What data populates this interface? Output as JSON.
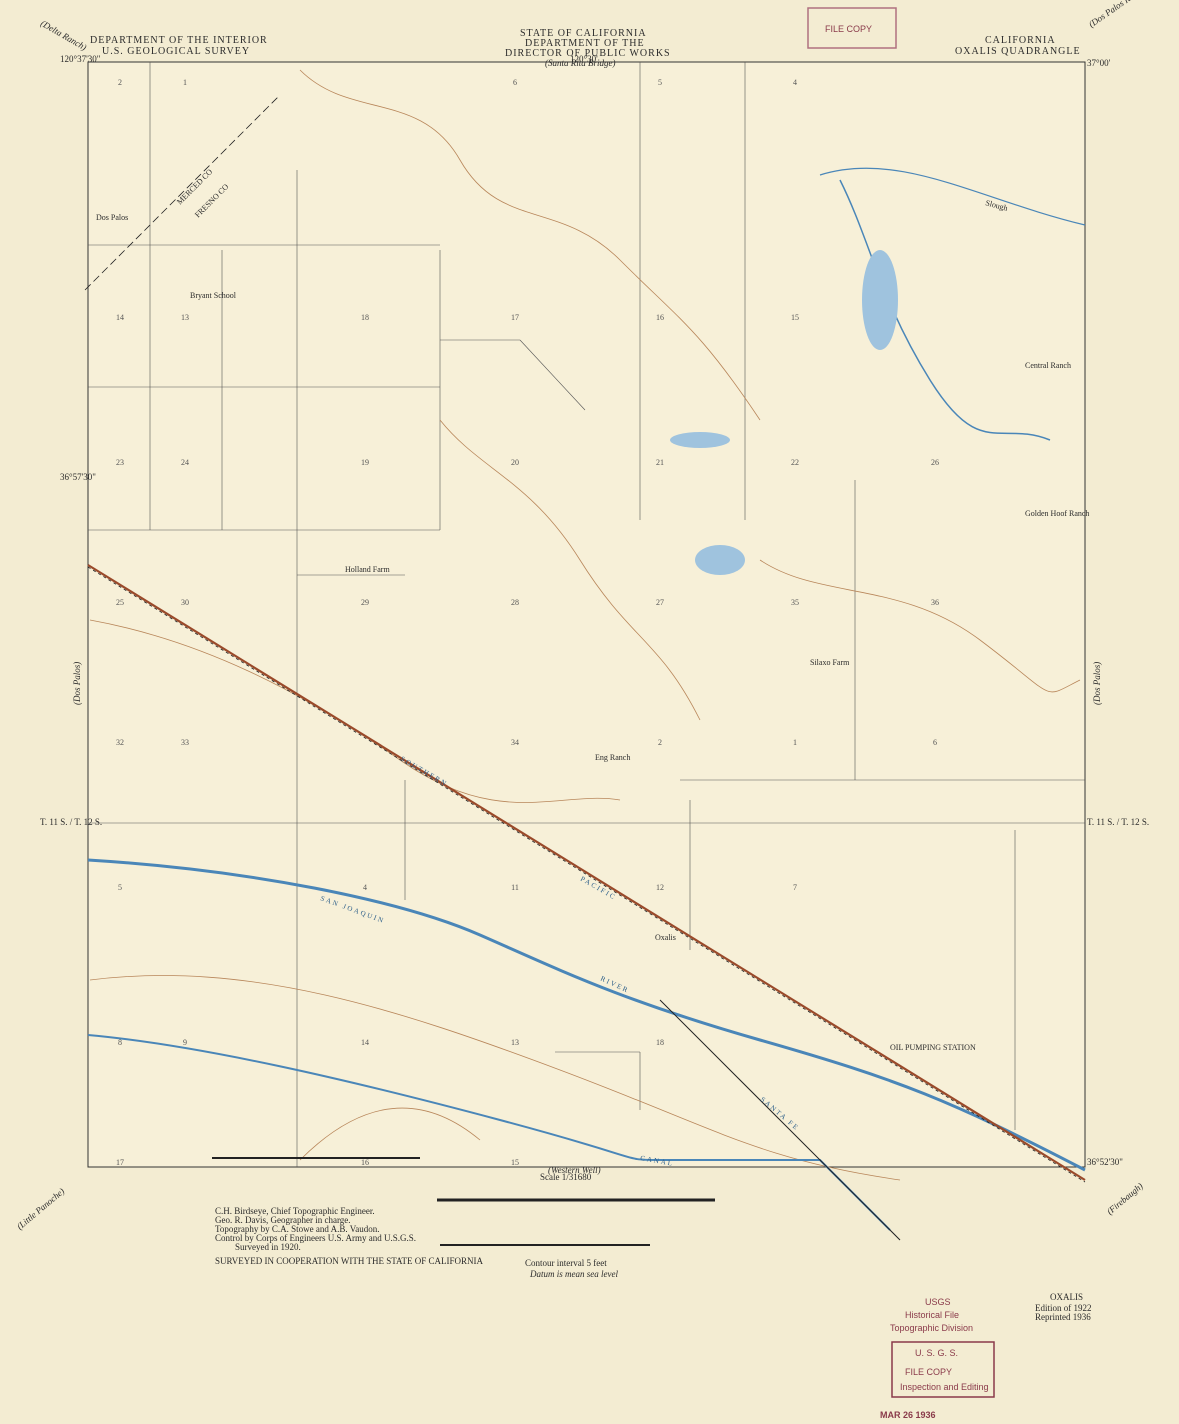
{
  "header": {
    "left_1": "DEPARTMENT OF THE INTERIOR",
    "left_2": "U.S. GEOLOGICAL SURVEY",
    "center_1": "STATE OF CALIFORNIA",
    "center_2": "DEPARTMENT OF THE",
    "center_3": "DIRECTOR OF PUBLIC WORKS",
    "center_4": "(Santa Rita Bridge)",
    "right_1": "CALIFORNIA",
    "right_2": "OXALIS QUADRANGLE",
    "stamp": "FILE COPY"
  },
  "coordinates": {
    "nw_lon": "120°37'30\"",
    "mid_lon": "120°30'",
    "ne_lat": "37°00'",
    "w_lat": "36°57'30\"",
    "sw_lat": "36°52'30\""
  },
  "margin_labels": {
    "nw": "(Delta Ranch)",
    "ne": "(Dos Palos Ranch)",
    "west": "(Dos Palos)",
    "east": "(Dos Palos)",
    "sw": "(Little Panoche)",
    "south": "(Western Well)",
    "se": "(Firebaugh)",
    "township_w": "T. 11 S. / T. 12 S.",
    "township_e": "T. 11 S. / T. 12 S."
  },
  "places": [
    "Dos Palos",
    "Bryant School",
    "Central Ranch",
    "Golden Hoof Ranch",
    "Holland Farm",
    "Silaxo Farm",
    "Eng Ranch",
    "Oxalis",
    "Slough",
    "MERCED CO",
    "FRESNO CO",
    "SAN JOAQUIN",
    "RIVER",
    "SOUTHERN",
    "PACIFIC",
    "SANTA FE",
    "CANAL",
    "OIL PUMPING STATION"
  ],
  "sections": [
    "2",
    "1",
    "6",
    "5",
    "4",
    "14",
    "13",
    "18",
    "17",
    "16",
    "15",
    "23",
    "24",
    "19",
    "20",
    "21",
    "22",
    "26",
    "25",
    "30",
    "29",
    "28",
    "27",
    "35",
    "36",
    "32",
    "33",
    "34",
    "2",
    "1",
    "6",
    "5",
    "4",
    "11",
    "12",
    "7",
    "8",
    "9",
    "14",
    "13",
    "18",
    "17",
    "16",
    "15"
  ],
  "footer": {
    "credit_1": "C.H. Birdseye, Chief Topographic Engineer.",
    "credit_2": "Geo. R. Davis, Geographer in charge.",
    "credit_3": "Topography by C.A. Stowe and A.B. Vaudon.",
    "credit_4": "Control by Corps of Engineers U.S. Army and U.S.G.S.",
    "credit_5": "Surveyed in 1920.",
    "coop": "SURVEYED IN COOPERATION WITH THE STATE OF CALIFORNIA",
    "scale": "Scale 1/31680",
    "contour": "Contour interval 5 feet",
    "datum": "Datum is mean sea level",
    "name": "OXALIS",
    "edition": "Edition of 1922",
    "reprint": "Reprinted 1936",
    "usgs_1": "USGS",
    "usgs_2": "Historical File",
    "usgs_3": "Topographic Division",
    "file_1": "U. S. G. S.",
    "file_2": "FILE COPY",
    "file_3": "Inspection and Editing",
    "date": "MAR 26 1936"
  }
}
